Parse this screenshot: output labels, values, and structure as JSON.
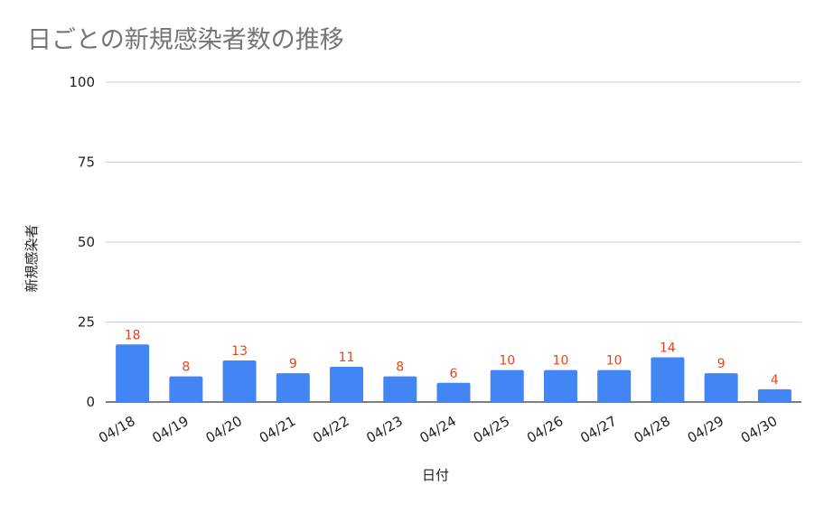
{
  "chart_data": {
    "type": "bar",
    "title": "日ごとの新規感染者数の推移",
    "xlabel": "日付",
    "ylabel": "新規感染者",
    "categories": [
      "04/18",
      "04/19",
      "04/20",
      "04/21",
      "04/22",
      "04/23",
      "04/24",
      "04/25",
      "04/26",
      "04/27",
      "04/28",
      "04/29",
      "04/30"
    ],
    "values": [
      18,
      8,
      13,
      9,
      11,
      8,
      6,
      10,
      10,
      10,
      14,
      9,
      4
    ],
    "ylim": [
      0,
      100
    ],
    "yticks": [
      0,
      25,
      50,
      75,
      100
    ],
    "grid": true,
    "legend": "none",
    "bar_color": "#4285f4",
    "label_color": "#e8431d",
    "grid_color": "#cccccc",
    "title_color": "#757575"
  }
}
